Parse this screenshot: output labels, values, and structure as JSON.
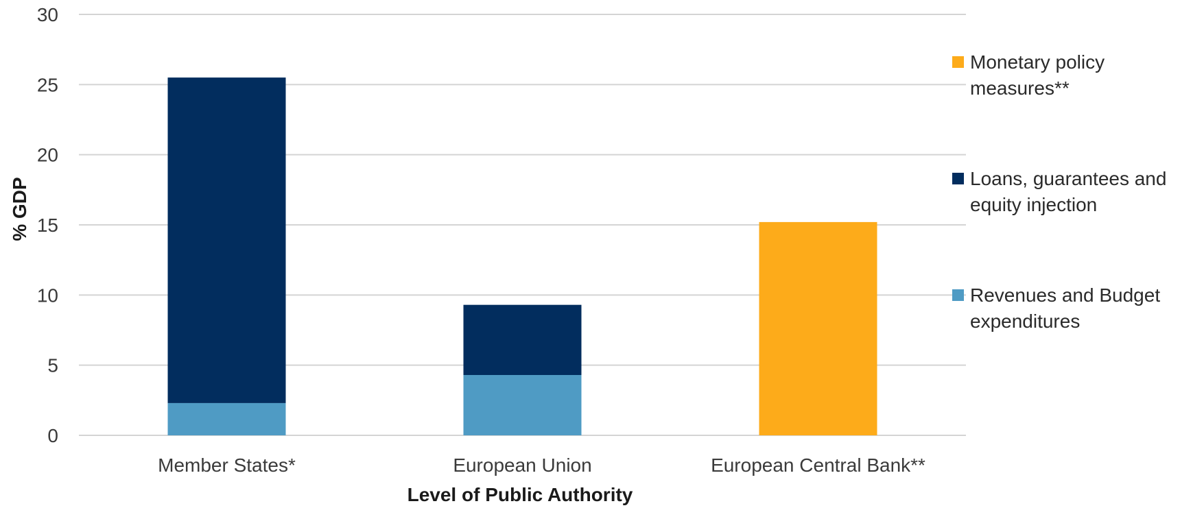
{
  "chart_data": {
    "type": "bar",
    "stacked": true,
    "title": "",
    "xlabel": "Level of Public Authority",
    "ylabel": "% GDP",
    "ylim": [
      0,
      30
    ],
    "yticks": [
      0,
      5,
      10,
      15,
      20,
      25,
      30
    ],
    "grid": true,
    "legend_position": "right",
    "categories": [
      "Member States*",
      "European Union",
      "European Central Bank**"
    ],
    "series": [
      {
        "name": "Revenues and Budget expenditures",
        "color": "#4f9bc4",
        "values": [
          2.3,
          4.3,
          0
        ]
      },
      {
        "name": "Loans, guarantees and equity injection",
        "color": "#022d5e",
        "values": [
          23.2,
          5.0,
          0
        ]
      },
      {
        "name": "Monetary policy measures**",
        "color": "#fdab1a",
        "values": [
          0,
          0,
          15.2
        ]
      }
    ],
    "legend_lines": [
      [
        "Monetary policy",
        "measures**"
      ],
      [
        "Loans, guarantees and",
        "equity injection"
      ],
      [
        "Revenues and Budget",
        "expenditures"
      ]
    ]
  }
}
